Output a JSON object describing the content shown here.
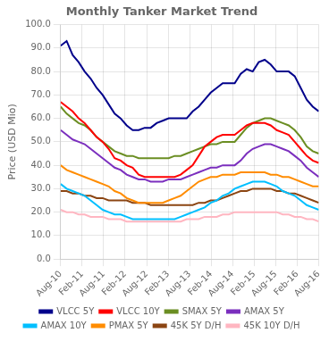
{
  "chart_data": {
    "type": "line",
    "title": "Monthly Tanker Market Trend",
    "y_label": "Price (USD Mio)",
    "x": [
      0,
      0.27907,
      0.55814,
      0.837209,
      1.116279,
      1.395349,
      1.674419,
      1.953488,
      2.232558,
      2.511628,
      2.790698,
      3.069767,
      3.348837,
      3.627907,
      3.906977,
      4.186047,
      4.465116,
      4.744186,
      5.023256,
      5.302326,
      5.581395,
      5.860465,
      6.139535,
      6.418605,
      6.697674,
      6.976744,
      7.255814,
      7.534884,
      7.813953,
      8.093023,
      8.372093,
      8.651163,
      8.930233,
      9.209302,
      9.488372,
      9.767442,
      10.046512,
      10.325581,
      10.604651,
      10.883721,
      11.162791,
      11.44186,
      11.72093,
      12
    ],
    "xlim": [
      0,
      12
    ],
    "xticks": [
      {
        "value": 0,
        "label": "Aug-10"
      },
      {
        "value": 1,
        "label": "Feb-11"
      },
      {
        "value": 2,
        "label": "Aug-11"
      },
      {
        "value": 3,
        "label": "Feb-12"
      },
      {
        "value": 4,
        "label": "Aug-12"
      },
      {
        "value": 5,
        "label": "Feb-13"
      },
      {
        "value": 6,
        "label": "Aug-13"
      },
      {
        "value": 7,
        "label": "Feb-14"
      },
      {
        "value": 8,
        "label": "Aug-14"
      },
      {
        "value": 9,
        "label": "Feb-15"
      },
      {
        "value": 10,
        "label": "Aug-15"
      },
      {
        "value": 11,
        "label": "Feb-16"
      },
      {
        "value": 12,
        "label": "Aug-16"
      }
    ],
    "ylim": [
      0,
      100
    ],
    "yticks": [
      {
        "value": 0,
        "label": "0.0"
      },
      {
        "value": 10,
        "label": "10.0"
      },
      {
        "value": 20,
        "label": "20.0"
      },
      {
        "value": 30,
        "label": "30.0"
      },
      {
        "value": 40,
        "label": "40.0"
      },
      {
        "value": 50,
        "label": "50.0"
      },
      {
        "value": 60,
        "label": "60.0"
      },
      {
        "value": 70,
        "label": "70.0"
      },
      {
        "value": 80,
        "label": "80.0"
      },
      {
        "value": 90,
        "label": "90.0"
      },
      {
        "value": 100,
        "label": "100.0"
      }
    ],
    "grid": true,
    "legend": "bottom",
    "series": [
      {
        "name": "VLCC 5Y",
        "color": "#00008B",
        "values": [
          91,
          93,
          87,
          84,
          80,
          77,
          73,
          70,
          66,
          62,
          60,
          57,
          55,
          55,
          56,
          56,
          58,
          59,
          60,
          60,
          60,
          60,
          63,
          65,
          68,
          71,
          73,
          75,
          75,
          75,
          79,
          81,
          80,
          84,
          85,
          83,
          80,
          80,
          80,
          78,
          73,
          68,
          65,
          63
        ]
      },
      {
        "name": "VLCC 10Y",
        "color": "#FF0000",
        "values": [
          67,
          65,
          63,
          60,
          58,
          55,
          52,
          50,
          47,
          43,
          42,
          40,
          39,
          36,
          35,
          35,
          35,
          35,
          35,
          35,
          36,
          38,
          40,
          44,
          48,
          50,
          52,
          53,
          53,
          53,
          55,
          57,
          58,
          58,
          58,
          57,
          55,
          54,
          53,
          50,
          47,
          44,
          42,
          41
        ]
      },
      {
        "name": "SMAX 5Y",
        "color": "#6B8E23",
        "values": [
          65,
          62,
          60,
          58,
          57,
          55,
          52,
          50,
          48,
          46,
          45,
          44,
          44,
          43,
          43,
          43,
          43,
          43,
          43,
          44,
          44,
          45,
          46,
          47,
          48,
          49,
          49,
          50,
          50,
          50,
          53,
          56,
          58,
          59,
          60,
          60,
          59,
          58,
          57,
          55,
          52,
          48,
          46,
          45
        ]
      },
      {
        "name": "AMAX 5Y",
        "color": "#7B2FBE",
        "values": [
          55,
          53,
          51,
          50,
          49,
          47,
          45,
          43,
          41,
          39,
          38,
          36,
          35,
          34,
          34,
          33,
          33,
          33,
          34,
          34,
          34,
          35,
          36,
          37,
          38,
          39,
          39,
          40,
          40,
          40,
          42,
          45,
          47,
          48,
          49,
          49,
          48,
          47,
          46,
          44,
          42,
          39,
          37,
          35
        ]
      },
      {
        "name": "AMAX 10Y",
        "color": "#00BFFF",
        "values": [
          32,
          30,
          29,
          28,
          27,
          25,
          23,
          21,
          20,
          19,
          19,
          18,
          17,
          17,
          17,
          17,
          17,
          17,
          17,
          17,
          18,
          19,
          20,
          21,
          22,
          24,
          25,
          27,
          28,
          30,
          31,
          32,
          33,
          33,
          33,
          32,
          31,
          29,
          28,
          27,
          25,
          23,
          22,
          21
        ]
      },
      {
        "name": "PMAX 5Y",
        "color": "#FF8C00",
        "values": [
          40,
          38,
          37,
          36,
          35,
          34,
          33,
          32,
          31,
          29,
          28,
          26,
          25,
          24,
          24,
          24,
          24,
          24,
          25,
          26,
          27,
          29,
          31,
          33,
          34,
          35,
          35,
          36,
          36,
          36,
          37,
          37,
          37,
          37,
          37,
          36,
          36,
          35,
          35,
          34,
          33,
          32,
          31,
          31
        ]
      },
      {
        "name": "45K 5Y D/H",
        "color": "#8B4513",
        "values": [
          29,
          29,
          28,
          28,
          27,
          27,
          26,
          26,
          25,
          25,
          25,
          25,
          24,
          24,
          24,
          23,
          23,
          23,
          23,
          23,
          23,
          23,
          23,
          24,
          24,
          25,
          25,
          26,
          27,
          28,
          29,
          29,
          30,
          30,
          30,
          30,
          29,
          29,
          28,
          28,
          27,
          26,
          25,
          24
        ]
      },
      {
        "name": "45K 10Y D/H",
        "color": "#FFB6C1",
        "values": [
          21,
          20,
          20,
          19,
          19,
          18,
          18,
          18,
          17,
          17,
          17,
          16,
          16,
          16,
          16,
          16,
          16,
          16,
          16,
          16,
          16,
          17,
          17,
          17,
          18,
          18,
          18,
          19,
          19,
          20,
          20,
          20,
          20,
          20,
          20,
          20,
          20,
          19,
          19,
          18,
          18,
          17,
          17,
          16
        ]
      }
    ]
  }
}
